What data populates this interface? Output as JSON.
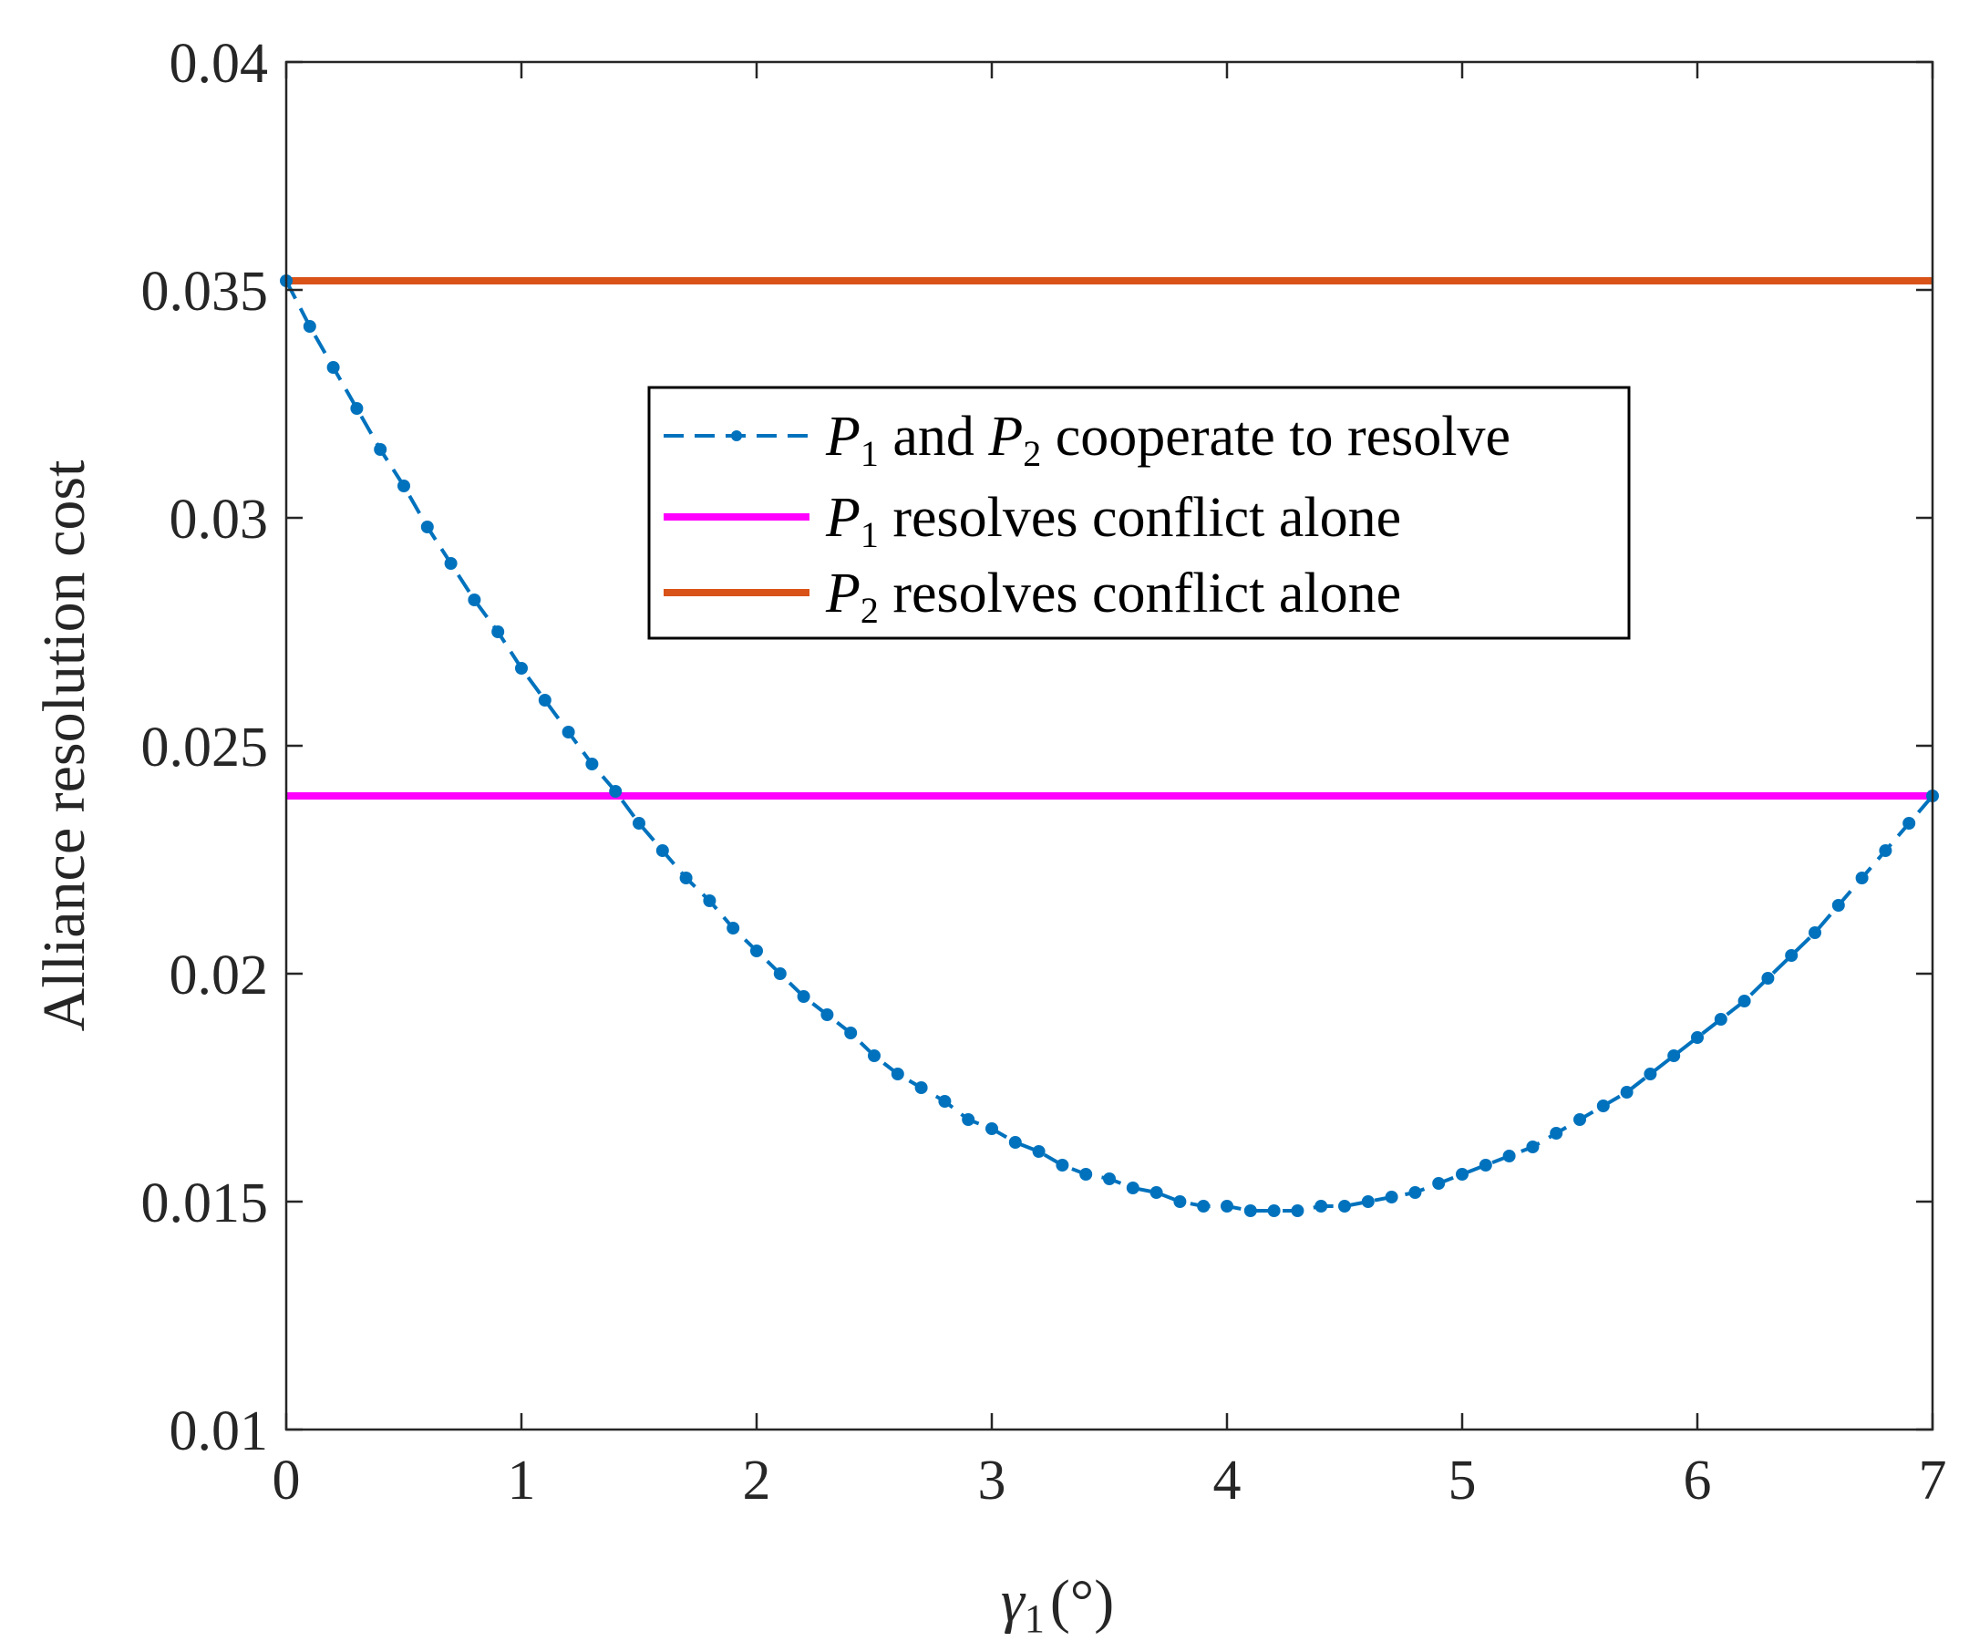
{
  "chart_data": {
    "type": "line",
    "title": "",
    "xlabel": {
      "symbol": "γ",
      "subscript": "1",
      "unit": "(°)"
    },
    "ylabel": "Alliance resolution cost",
    "xlim": [
      0,
      7
    ],
    "ylim": [
      0.01,
      0.04
    ],
    "xticks": [
      0,
      1,
      2,
      3,
      4,
      5,
      6,
      7
    ],
    "xtick_labels": [
      "0",
      "1",
      "2",
      "3",
      "4",
      "5",
      "6",
      "7"
    ],
    "yticks": [
      0.01,
      0.015,
      0.02,
      0.025,
      0.03,
      0.035,
      0.04
    ],
    "ytick_labels": [
      "0.01",
      "0.015",
      "0.02",
      "0.025",
      "0.03",
      "0.035",
      "0.04"
    ],
    "grid": false,
    "legend_position": "upper-center",
    "series": [
      {
        "name": "P1 and P2 cooperate to resolve",
        "style": "dashed-dots",
        "color": "#0072BD",
        "x": [
          0,
          0.1,
          0.2,
          0.3,
          0.4,
          0.5,
          0.6,
          0.7,
          0.8,
          0.9,
          1.0,
          1.1,
          1.2,
          1.3,
          1.4,
          1.5,
          1.6,
          1.7,
          1.8,
          1.9,
          2.0,
          2.1,
          2.2,
          2.3,
          2.4,
          2.5,
          2.6,
          2.7,
          2.8,
          2.9,
          3.0,
          3.1,
          3.2,
          3.3,
          3.4,
          3.5,
          3.6,
          3.7,
          3.8,
          3.9,
          4.0,
          4.1,
          4.2,
          4.3,
          4.4,
          4.5,
          4.6,
          4.7,
          4.8,
          4.9,
          5.0,
          5.1,
          5.2,
          5.3,
          5.4,
          5.5,
          5.6,
          5.7,
          5.8,
          5.9,
          6.0,
          6.1,
          6.2,
          6.3,
          6.4,
          6.5,
          6.6,
          6.7,
          6.8,
          6.9,
          7.0
        ],
        "values": [
          0.0352,
          0.0342,
          0.0333,
          0.0324,
          0.0315,
          0.0307,
          0.0298,
          0.029,
          0.0282,
          0.0275,
          0.0267,
          0.026,
          0.0253,
          0.0246,
          0.024,
          0.0233,
          0.0227,
          0.0221,
          0.0216,
          0.021,
          0.0205,
          0.02,
          0.0195,
          0.0191,
          0.0187,
          0.0182,
          0.0178,
          0.0175,
          0.0172,
          0.0168,
          0.0166,
          0.0163,
          0.0161,
          0.0158,
          0.0156,
          0.0155,
          0.0153,
          0.0152,
          0.015,
          0.0149,
          0.0149,
          0.0148,
          0.0148,
          0.0148,
          0.0149,
          0.0149,
          0.015,
          0.0151,
          0.0152,
          0.0154,
          0.0156,
          0.0158,
          0.016,
          0.0162,
          0.0165,
          0.0168,
          0.0171,
          0.0174,
          0.0178,
          0.0182,
          0.0186,
          0.019,
          0.0194,
          0.0199,
          0.0204,
          0.0209,
          0.0215,
          0.0221,
          0.0227,
          0.0233,
          0.0239
        ]
      },
      {
        "name": "P1 resolves conflict alone",
        "style": "solid",
        "color": "#FF00FF",
        "x": [
          0,
          7
        ],
        "values": [
          0.0239,
          0.0239
        ]
      },
      {
        "name": "P2 resolves conflict alone",
        "style": "solid",
        "color": "#D95319",
        "x": [
          0,
          7
        ],
        "values": [
          0.0352,
          0.0352
        ]
      }
    ]
  },
  "legend": {
    "items": [
      {
        "symbol": "P",
        "sub": "1",
        "text_mid": " and ",
        "symbol2": "P",
        "sub2": "2",
        "text": " cooperate to resolve"
      },
      {
        "symbol": "P",
        "sub": "1",
        "text": " resolves conflict alone"
      },
      {
        "symbol": "P",
        "sub": "2",
        "text": " resolves conflict alone"
      }
    ]
  }
}
